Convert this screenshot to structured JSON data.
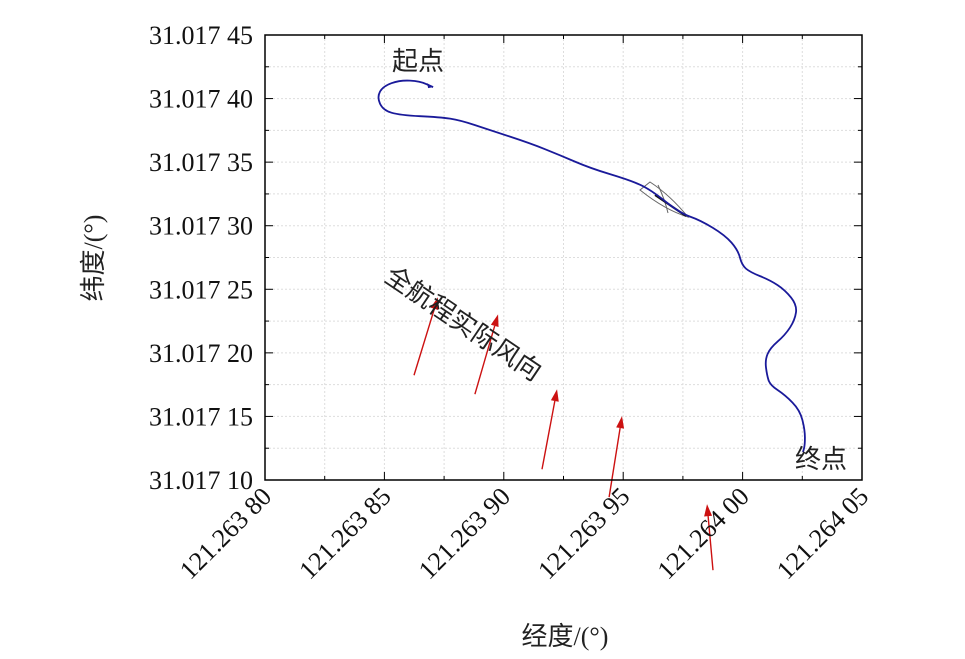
{
  "chart_data": {
    "type": "line",
    "title": "",
    "xlabel": "经度/(°)",
    "ylabel": "纬度/(°)",
    "xlim": [
      121.2638,
      121.26405
    ],
    "ylim": [
      31.0171,
      31.01745
    ],
    "grid": true,
    "x_ticks": [
      121.2638,
      121.26385,
      121.2639,
      121.26395,
      121.264,
      121.26405
    ],
    "x_tick_labels": [
      "121.263 80",
      "121.263 85",
      "121.263 90",
      "121.263 95",
      "121.264 00",
      "121.264 05"
    ],
    "y_ticks": [
      31.0171,
      31.01715,
      31.0172,
      31.01725,
      31.0173,
      31.01735,
      31.0174,
      31.01745
    ],
    "y_tick_labels": [
      "31.017 10",
      "31.017 15",
      "31.017 20",
      "31.017 25",
      "31.017 30",
      "31.017 35",
      "31.017 40",
      "31.017 45"
    ],
    "colors": {
      "track": "#1a1a9a",
      "wind": "#cc1111",
      "boat": "#555555"
    },
    "track": {
      "x": [
        121.2638704,
        121.2638649,
        121.2638565,
        121.2638494,
        121.2638469,
        121.2638494,
        121.2638565,
        121.2638733,
        121.2638817,
        121.2638942,
        121.263911,
        121.2639235,
        121.2639361,
        121.2639528,
        121.2639612,
        121.2639738,
        121.2639822,
        121.2639926,
        121.2639981,
        121.2639997,
        121.2640031,
        121.2640115,
        121.2640178,
        121.2640228,
        121.2640219,
        121.2640178,
        121.2640115,
        121.2640094,
        121.2640102,
        121.2640115,
        121.2640178,
        121.264024,
        121.2640261,
        121.2640261,
        121.2640253
      ],
      "y": [
        31.017409,
        31.0174137,
        31.0174145,
        31.0174097,
        31.0174011,
        31.0173909,
        31.0173869,
        31.0173854,
        31.017383,
        31.0173752,
        31.0173649,
        31.0173555,
        31.0173453,
        31.0173358,
        31.0173288,
        31.0173099,
        31.0173044,
        31.0172926,
        31.0172808,
        31.017269,
        31.0172635,
        31.0172572,
        31.0172494,
        31.0172376,
        31.0172258,
        31.017214,
        31.0172038,
        31.0171943,
        31.0171825,
        31.0171747,
        31.0171668,
        31.017155,
        31.0171393,
        31.0171275,
        31.017122
      ]
    },
    "wind_arrows": [
      {
        "from": [
          121.2638624,
          31.0171824
        ],
        "to": [
          121.2638724,
          31.0172437
        ]
      },
      {
        "from": [
          121.2638879,
          31.0171675
        ],
        "to": [
          121.2638976,
          31.0172303
        ]
      },
      {
        "from": [
          121.263916,
          31.0171085
        ],
        "to": [
          121.2639223,
          31.0171714
        ]
      },
      {
        "from": [
          121.2639441,
          31.0170865
        ],
        "to": [
          121.2639495,
          31.0171502
        ]
      },
      {
        "from": [
          121.2639876,
          31.0170291
        ],
        "to": [
          121.2639851,
          31.017081
        ]
      }
    ],
    "annotations": {
      "start": "起点",
      "end": "终点",
      "wind": "全航程实际风向"
    }
  }
}
